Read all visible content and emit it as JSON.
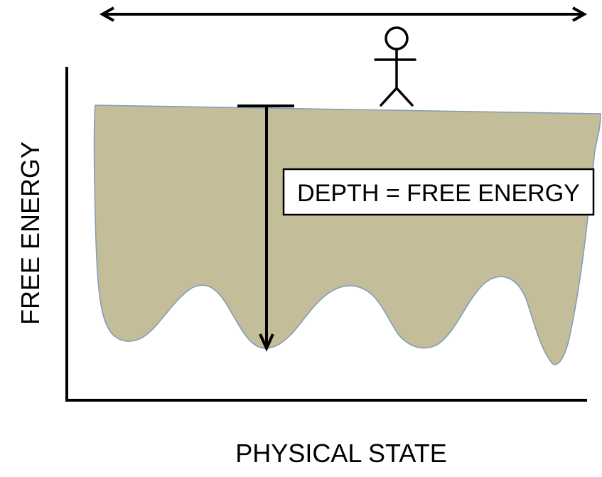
{
  "diagram": {
    "y_axis_label": "FREE ENERGY",
    "x_axis_label": "PHYSICAL STATE",
    "callout_text": "DEPTH = FREE ENERGY"
  },
  "colors": {
    "landscape_fill": "#c4bd9a",
    "landscape_edge": "#7f9bb5",
    "ink": "#000000",
    "background": "#ffffff"
  },
  "icons": {
    "observer": "stick-figure-icon",
    "span_arrow": "double-headed-arrow-icon",
    "depth_arrow": "down-arrow-icon"
  }
}
